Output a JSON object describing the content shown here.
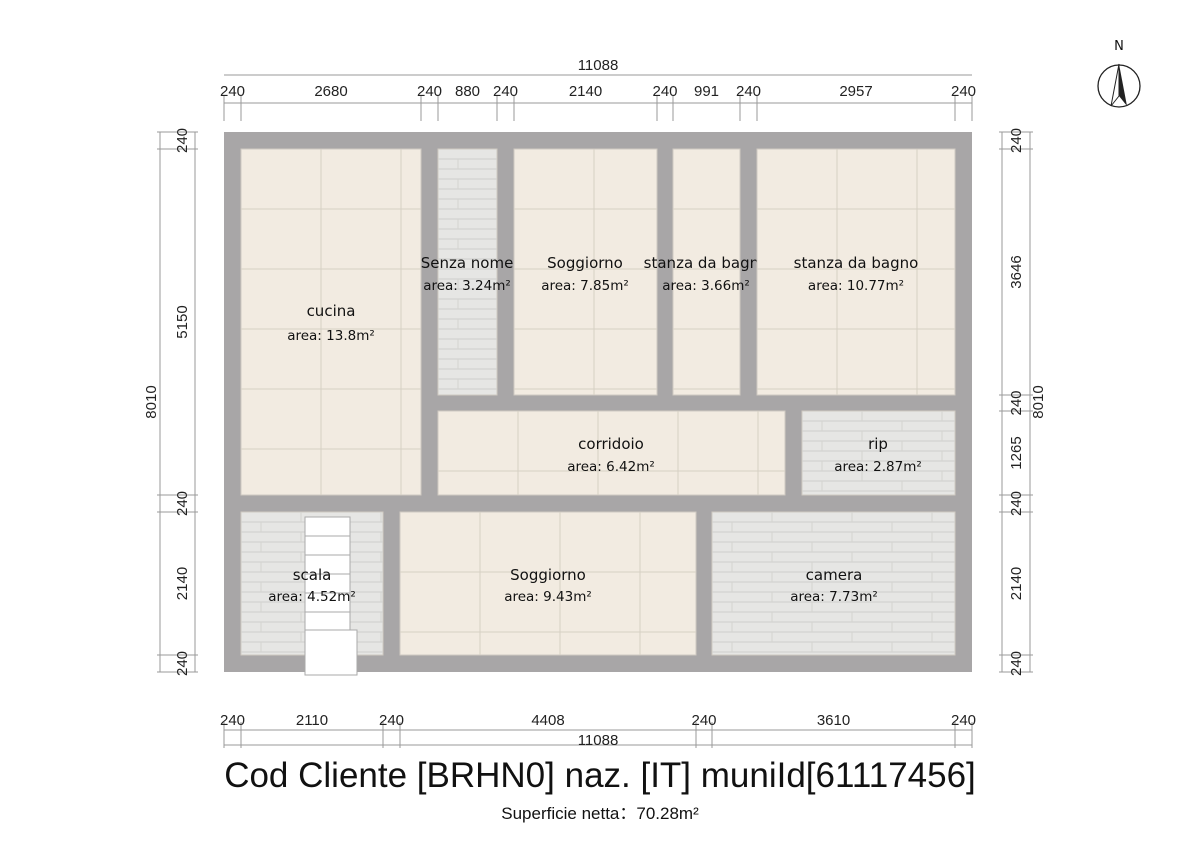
{
  "title": "Cod Cliente [BRHN0] naz. [IT] muniId[61117456]",
  "subtitle": "Superficie netta：70.28m²",
  "north_label": "N",
  "colors": {
    "wall": "#a8a6a7",
    "tile_beige": "#f2ebe1",
    "tile_gray": "#e6e6e4",
    "grid": "#d6d0c4"
  },
  "dimensions": {
    "top_total": "11088",
    "top": [
      "240",
      "2680",
      "240",
      "880",
      "240",
      "2140",
      "240",
      "991",
      "240",
      "2957",
      "240"
    ],
    "bottom_total": "11088",
    "bottom": [
      "240",
      "2110",
      "240",
      "4408",
      "240",
      "3610",
      "240"
    ],
    "left_total": "8010",
    "left": [
      "240",
      "5150",
      "240",
      "2140",
      "240"
    ],
    "right_total": "8010",
    "right": [
      "240",
      "3646",
      "240",
      "1265",
      "240",
      "2140",
      "240"
    ]
  },
  "rooms": [
    {
      "name": "cucina",
      "area": "area: 13.8m²",
      "floor": "beige"
    },
    {
      "name": "Senza nome",
      "area": "area: 3.24m²",
      "floor": "gray"
    },
    {
      "name": "Soggiorno",
      "area": "area: 7.85m²",
      "floor": "beige"
    },
    {
      "name": "stanza da bagno",
      "area": "area: 3.66m²",
      "floor": "beige"
    },
    {
      "name": "stanza da bagno",
      "area": "area: 10.77m²",
      "floor": "beige"
    },
    {
      "name": "corridoio",
      "area": "area: 6.42m²",
      "floor": "beige"
    },
    {
      "name": "rip",
      "area": "area: 2.87m²",
      "floor": "gray"
    },
    {
      "name": "scala",
      "area": "area: 4.52m²",
      "floor": "gray"
    },
    {
      "name": "Soggiorno",
      "area": "area: 9.43m²",
      "floor": "beige"
    },
    {
      "name": "camera",
      "area": "area: 7.73m²",
      "floor": "gray"
    }
  ]
}
